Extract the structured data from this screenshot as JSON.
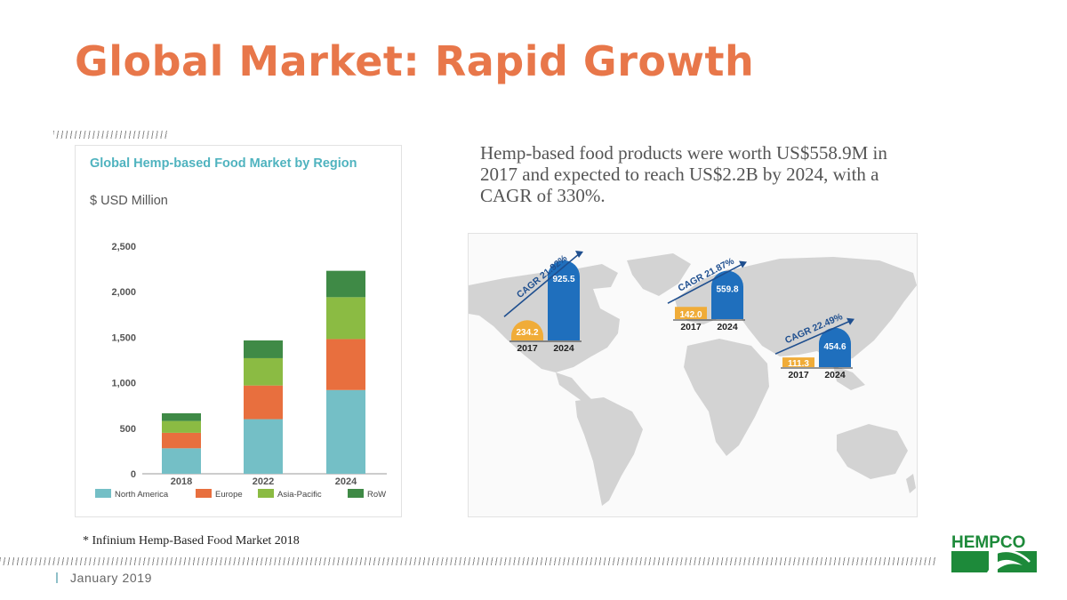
{
  "slide": {
    "title": "Global Market: Rapid Growth",
    "summary": "Hemp-based food products were worth US$558.9M in 2017 and expected to reach US$2.2B by 2024, with a CAGR of 330%.",
    "footnote": "* Infinium Hemp-Based Food Market 2018",
    "date": "January 2019",
    "logo_text": "HEMPCO"
  },
  "colors": {
    "title": "#e8774a",
    "north_america": "#74bfc6",
    "europe": "#e86f3e",
    "asia_pacific": "#8bbb43",
    "row": "#3f8a46",
    "cagr_orange": "#f0ac38",
    "cagr_blue": "#1f6fbd",
    "logo_green": "#1d8a3a"
  },
  "chart_data": [
    {
      "type": "bar",
      "stacked": true,
      "title": "Global Hemp-based Food Market by Region",
      "ylabel": "$ USD Million",
      "categories": [
        "2018",
        "2022",
        "2024"
      ],
      "yticks": [
        "0",
        "500",
        "1,000",
        "1,500",
        "2,000",
        "2,500"
      ],
      "ylim": [
        0,
        2500
      ],
      "grid": false,
      "legend_position": "bottom",
      "series": [
        {
          "name": "North America",
          "values": [
            280,
            600,
            920
          ]
        },
        {
          "name": "Europe",
          "values": [
            170,
            370,
            560
          ]
        },
        {
          "name": "Asia-Pacific",
          "values": [
            130,
            300,
            460
          ]
        },
        {
          "name": "RoW",
          "values": [
            85,
            195,
            290
          ]
        }
      ]
    },
    {
      "type": "bar",
      "chart_kind": "map-overlay",
      "groups": [
        {
          "cagr": "CAGR 21.92%",
          "labels": [
            "2017",
            "2024"
          ],
          "values": [
            234.2,
            925.5
          ],
          "value_labels": [
            "234.2",
            "925.5"
          ]
        },
        {
          "cagr": "CAGR 21.87%",
          "labels": [
            "2017",
            "2024"
          ],
          "values": [
            142.0,
            559.8
          ],
          "value_labels": [
            "142.0",
            "559.8"
          ]
        },
        {
          "cagr": "CAGR 22.49%",
          "labels": [
            "2017",
            "2024"
          ],
          "values": [
            111.3,
            454.6
          ],
          "value_labels": [
            "111.3",
            "454.6"
          ]
        }
      ]
    }
  ]
}
